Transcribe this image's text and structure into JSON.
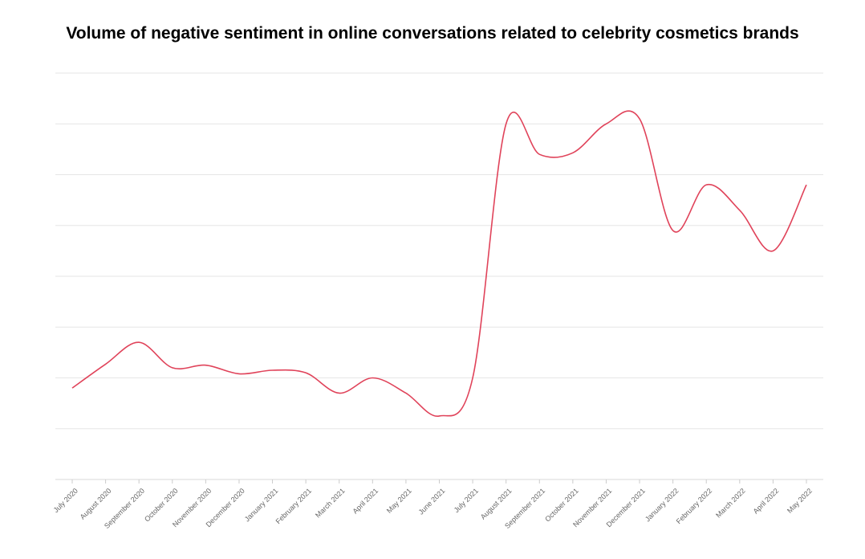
{
  "chart_data": {
    "type": "line",
    "title": "Volume of negative sentiment in online conversations related to celebrity cosmetics brands",
    "xlabel": "",
    "ylabel": "",
    "ylim": [
      0,
      8
    ],
    "grid": true,
    "legend": "none",
    "categories": [
      "July 2020",
      "August 2020",
      "September 2020",
      "October 2020",
      "November 2020",
      "December 2020",
      "January 2021",
      "February 2021",
      "March 2021",
      "April 2021",
      "May 2021",
      "June 2021",
      "July 2021",
      "August 2021",
      "September 2021",
      "October 2021",
      "November 2021",
      "December 2021",
      "January 2022",
      "February 2022",
      "March 2022",
      "April 2022",
      "May 2022"
    ],
    "series": [
      {
        "name": "",
        "color": "#e0435a",
        "values": [
          1.8,
          2.27,
          2.7,
          2.2,
          2.25,
          2.08,
          2.15,
          2.1,
          1.7,
          2.0,
          1.7,
          1.25,
          2.0,
          7.0,
          6.4,
          6.43,
          7.0,
          7.1,
          4.9,
          5.8,
          5.3,
          4.5,
          5.8
        ]
      }
    ]
  }
}
